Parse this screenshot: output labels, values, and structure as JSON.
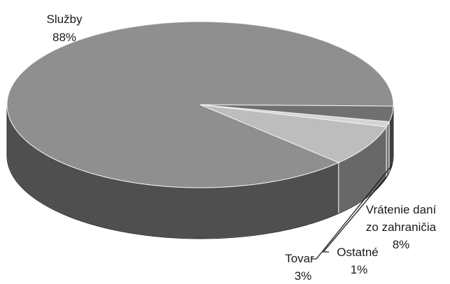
{
  "chart_data": {
    "type": "pie",
    "style": "3d",
    "title": "",
    "legend": "none",
    "slices": [
      {
        "label_lines": [
          "Služby"
        ],
        "value": 88,
        "value_label": "88%",
        "color": "#8f8f8f"
      },
      {
        "label_lines": [
          "Vrátenie daní",
          "zo zahraničia"
        ],
        "value": 8,
        "value_label": "8%",
        "color": "#bdbdbd"
      },
      {
        "label_lines": [
          "Ostatné"
        ],
        "value": 1,
        "value_label": "1%",
        "color": "#d4d4d4"
      },
      {
        "label_lines": [
          "Tovar"
        ],
        "value": 3,
        "value_label": "3%",
        "color": "#707070"
      }
    ]
  }
}
